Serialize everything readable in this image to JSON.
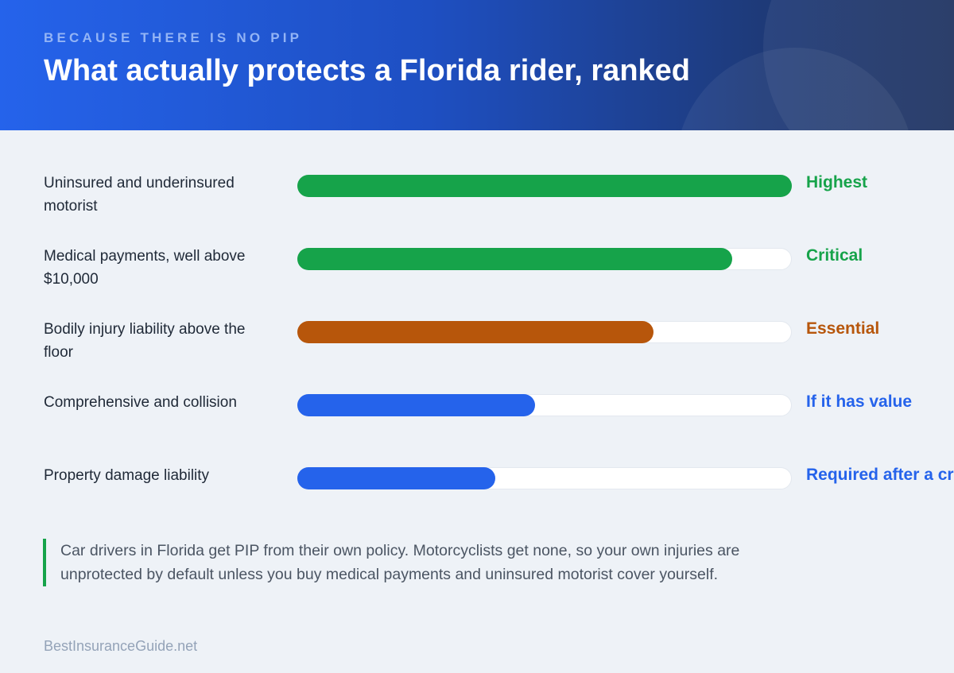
{
  "header": {
    "eyebrow": "BECAUSE THERE IS NO PIP",
    "title": "What actually protects a Florida rider, ranked"
  },
  "colors": {
    "green": "#16a34a",
    "orange": "#b7560b",
    "blue": "#2563eb",
    "track": "#ffffff"
  },
  "chart_data": {
    "type": "bar",
    "orientation": "horizontal",
    "xlim": [
      0,
      100
    ],
    "grid": false,
    "rows": [
      {
        "label": "Uninsured and underinsured motorist",
        "value": 100,
        "rank": "Highest",
        "color": "#16a34a"
      },
      {
        "label": "Medical payments, well above $10,000",
        "value": 88,
        "rank": "Critical",
        "color": "#16a34a"
      },
      {
        "label": "Bodily injury liability above the floor",
        "value": 72,
        "rank": "Essential",
        "color": "#b7560b"
      },
      {
        "label": "Comprehensive and collision",
        "value": 48,
        "rank": "If it has value",
        "color": "#2563eb"
      },
      {
        "label": "Property damage liability",
        "value": 40,
        "rank": "Required after a cr",
        "color": "#2563eb"
      }
    ]
  },
  "note": {
    "text": "Car drivers in Florida get PIP from their own policy. Motorcyclists get none, so your own injuries are unprotected by default unless you buy medical payments and uninsured motorist cover yourself."
  },
  "footer": {
    "source": "BestInsuranceGuide.net"
  }
}
